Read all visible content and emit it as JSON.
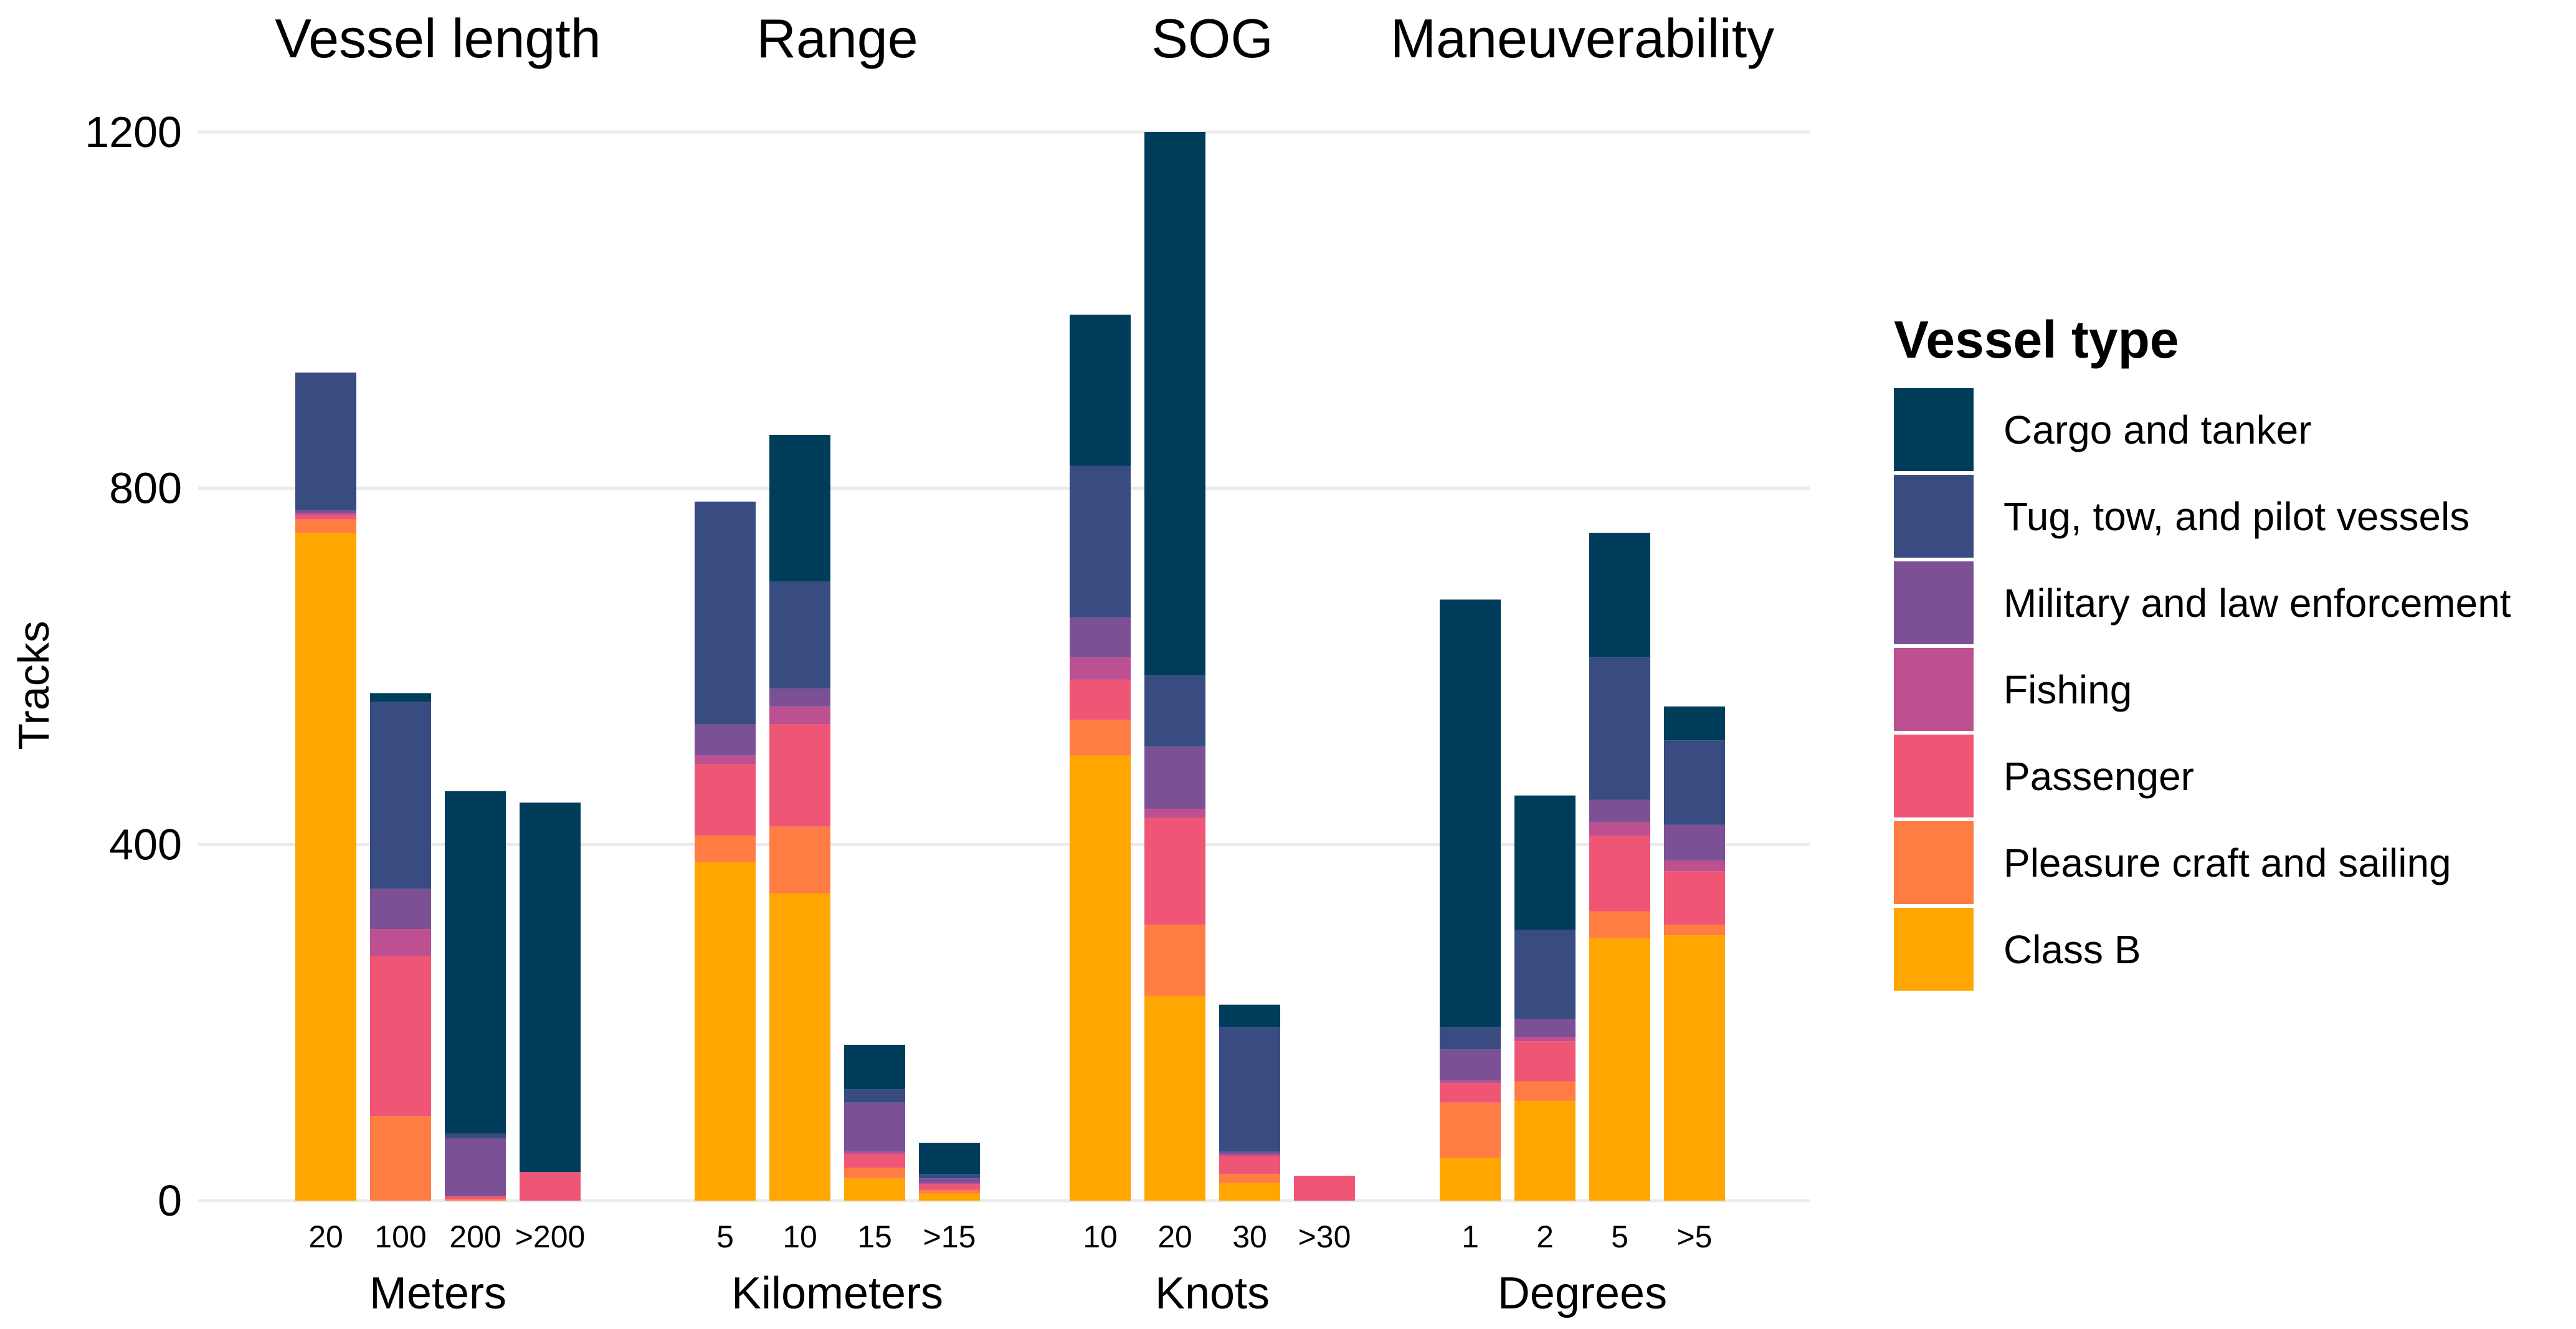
{
  "chart_data": {
    "type": "bar",
    "stacked": true,
    "ylabel": "Tracks",
    "ylim": [
      0,
      1200
    ],
    "yticks": [
      0,
      400,
      800,
      1200
    ],
    "grid": true,
    "legend_position": "right",
    "legend": {
      "title": "Vessel type",
      "items": [
        {
          "name": "Cargo and tanker",
          "color": "#003D5B"
        },
        {
          "name": "Tug, tow, and pilot vessels",
          "color": "#384C82"
        },
        {
          "name": "Military and law enforcement",
          "color": "#7B5095"
        },
        {
          "name": "Fishing",
          "color": "#BC5090"
        },
        {
          "name": "Passenger",
          "color": "#EF5675"
        },
        {
          "name": "Pleasure craft and sailing",
          "color": "#FF7C43"
        },
        {
          "name": "Class B",
          "color": "#FFA600"
        }
      ]
    },
    "series_order_bottom_to_top": [
      "Class B",
      "Pleasure craft and sailing",
      "Passenger",
      "Fishing",
      "Military and law enforcement",
      "Tug, tow, and pilot vessels",
      "Cargo and tanker"
    ],
    "panels": [
      {
        "title": "Vessel length",
        "xlabel": "Meters",
        "categories": [
          "20",
          "100",
          "200",
          ">200"
        ],
        "bars": [
          {
            "Class B": 750,
            "Pleasure craft and sailing": 15,
            "Passenger": 5,
            "Fishing": 2,
            "Military and law enforcement": 3,
            "Tug, tow, and pilot vessels": 155,
            "Cargo and tanker": 0
          },
          {
            "Class B": 0,
            "Pleasure craft and sailing": 95,
            "Passenger": 180,
            "Fishing": 30,
            "Military and law enforcement": 45,
            "Tug, tow, and pilot vessels": 210,
            "Cargo and tanker": 10
          },
          {
            "Class B": 0,
            "Pleasure craft and sailing": 2,
            "Passenger": 3,
            "Fishing": 0,
            "Military and law enforcement": 65,
            "Tug, tow, and pilot vessels": 5,
            "Cargo and tanker": 385
          },
          {
            "Class B": 0,
            "Pleasure craft and sailing": 0,
            "Passenger": 32,
            "Fishing": 0,
            "Military and law enforcement": 0,
            "Tug, tow, and pilot vessels": 0,
            "Cargo and tanker": 415
          }
        ]
      },
      {
        "title": "Range",
        "xlabel": "Kilometers",
        "categories": [
          "5",
          "10",
          "15",
          ">15"
        ],
        "bars": [
          {
            "Class B": 380,
            "Pleasure craft and sailing": 30,
            "Passenger": 80,
            "Fishing": 10,
            "Military and law enforcement": 35,
            "Tug, tow, and pilot vessels": 250,
            "Cargo and tanker": 0
          },
          {
            "Class B": 345,
            "Pleasure craft and sailing": 75,
            "Passenger": 115,
            "Fishing": 20,
            "Military and law enforcement": 20,
            "Tug, tow, and pilot vessels": 120,
            "Cargo and tanker": 165
          },
          {
            "Class B": 25,
            "Pleasure craft and sailing": 12,
            "Passenger": 15,
            "Fishing": 3,
            "Military and law enforcement": 55,
            "Tug, tow, and pilot vessels": 15,
            "Cargo and tanker": 50
          },
          {
            "Class B": 8,
            "Pleasure craft and sailing": 4,
            "Passenger": 6,
            "Fishing": 2,
            "Military and law enforcement": 5,
            "Tug, tow, and pilot vessels": 5,
            "Cargo and tanker": 35
          }
        ]
      },
      {
        "title": "SOG",
        "xlabel": "Knots",
        "categories": [
          "10",
          "20",
          "30",
          ">30"
        ],
        "bars": [
          {
            "Class B": 500,
            "Pleasure craft and sailing": 40,
            "Passenger": 45,
            "Fishing": 25,
            "Military and law enforcement": 45,
            "Tug, tow, and pilot vessels": 170,
            "Cargo and tanker": 170
          },
          {
            "Class B": 230,
            "Pleasure craft and sailing": 80,
            "Passenger": 120,
            "Fishing": 10,
            "Military and law enforcement": 70,
            "Tug, tow, and pilot vessels": 80,
            "Cargo and tanker": 610
          },
          {
            "Class B": 20,
            "Pleasure craft and sailing": 10,
            "Passenger": 20,
            "Fishing": 2,
            "Military and law enforcement": 3,
            "Tug, tow, and pilot vessels": 140,
            "Cargo and tanker": 25
          },
          {
            "Class B": 0,
            "Pleasure craft and sailing": 0,
            "Passenger": 28,
            "Fishing": 0,
            "Military and law enforcement": 0,
            "Tug, tow, and pilot vessels": 0,
            "Cargo and tanker": 0
          }
        ]
      },
      {
        "title": "Maneuverability",
        "xlabel": "Degrees",
        "categories": [
          "1",
          "2",
          "5",
          ">5"
        ],
        "bars": [
          {
            "Class B": 48,
            "Pleasure craft and sailing": 62,
            "Passenger": 22,
            "Fishing": 3,
            "Military and law enforcement": 35,
            "Tug, tow, and pilot vessels": 25,
            "Cargo and tanker": 480
          },
          {
            "Class B": 112,
            "Pleasure craft and sailing": 22,
            "Passenger": 45,
            "Fishing": 5,
            "Military and law enforcement": 20,
            "Tug, tow, and pilot vessels": 100,
            "Cargo and tanker": 151
          },
          {
            "Class B": 295,
            "Pleasure craft and sailing": 30,
            "Passenger": 85,
            "Fishing": 15,
            "Military and law enforcement": 25,
            "Tug, tow, and pilot vessels": 160,
            "Cargo and tanker": 140
          },
          {
            "Class B": 298,
            "Pleasure craft and sailing": 12,
            "Passenger": 60,
            "Fishing": 12,
            "Military and law enforcement": 40,
            "Tug, tow, and pilot vessels": 95,
            "Cargo and tanker": 38
          }
        ]
      }
    ]
  }
}
